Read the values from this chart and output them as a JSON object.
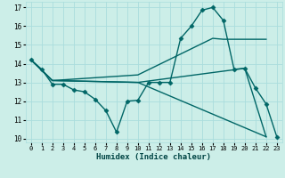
{
  "xlabel": "Humidex (Indice chaleur)",
  "bg_color": "#cceee8",
  "grid_color": "#aadddd",
  "line_color": "#006666",
  "xlim": [
    -0.5,
    23.5
  ],
  "ylim": [
    9.8,
    17.3
  ],
  "yticks": [
    10,
    11,
    12,
    13,
    14,
    15,
    16,
    17
  ],
  "xticks": [
    0,
    1,
    2,
    3,
    4,
    5,
    6,
    7,
    8,
    9,
    10,
    11,
    12,
    13,
    14,
    15,
    16,
    17,
    18,
    19,
    20,
    21,
    22,
    23
  ],
  "series": [
    {
      "x": [
        0,
        1,
        2,
        3,
        4,
        5,
        6,
        7,
        8,
        9,
        10,
        11,
        12,
        13,
        14,
        15,
        16,
        17,
        18,
        19,
        20,
        21,
        22,
        23
      ],
      "y": [
        14.2,
        13.7,
        12.9,
        12.9,
        12.6,
        12.5,
        12.1,
        11.5,
        10.35,
        12.0,
        12.05,
        13.0,
        13.0,
        13.0,
        15.35,
        16.0,
        16.85,
        17.0,
        16.3,
        13.7,
        13.75,
        12.7,
        11.85,
        10.1
      ],
      "has_markers": true
    },
    {
      "x": [
        0,
        2,
        10,
        17,
        18,
        22
      ],
      "y": [
        14.2,
        13.1,
        13.4,
        15.35,
        15.3,
        15.3
      ],
      "has_markers": false
    },
    {
      "x": [
        0,
        2,
        10,
        22
      ],
      "y": [
        14.2,
        13.1,
        13.0,
        10.1
      ],
      "has_markers": false
    },
    {
      "x": [
        0,
        2,
        10,
        20,
        22
      ],
      "y": [
        14.2,
        13.1,
        13.0,
        13.75,
        10.1
      ],
      "has_markers": false
    }
  ]
}
